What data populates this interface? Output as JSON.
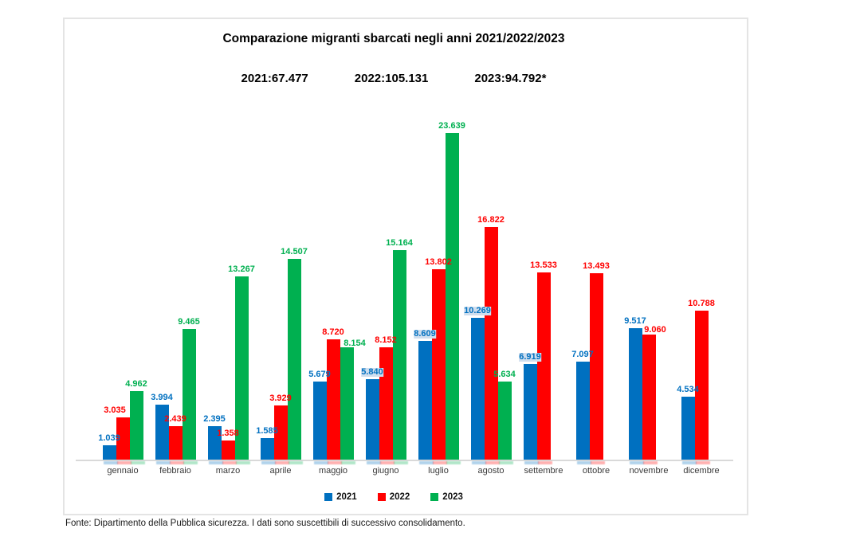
{
  "chart_data": {
    "type": "bar",
    "title": "Comparazione migranti sbarcati negli anni 2021/2022/2023",
    "subtitle_totals": [
      "2021:67.477",
      "2022:105.131",
      "2023:94.792*"
    ],
    "categories": [
      "gennaio",
      "febbraio",
      "marzo",
      "aprile",
      "maggio",
      "giugno",
      "luglio",
      "agosto",
      "settembre",
      "ottobre",
      "novembre",
      "dicembre"
    ],
    "ylim": [
      0,
      24000
    ],
    "grid": false,
    "legend_position": "bottom",
    "highlight_color": "#cfdeee",
    "series": [
      {
        "name": "2021",
        "color": "#0070C0",
        "values": [
          1039,
          3994,
          2395,
          1585,
          5679,
          5840,
          8609,
          10269,
          6919,
          7097,
          9517,
          4534
        ],
        "labels": [
          "1.039",
          "3.994",
          "2.395",
          "1.585",
          "5.679",
          "5.840",
          "8.609",
          "10.269",
          "6.919",
          "7.097",
          "9.517",
          "4.534"
        ],
        "highlighted_labels": [
          "5.840",
          "8.609",
          "10.269",
          "6.919"
        ]
      },
      {
        "name": "2022",
        "color": "#FF0000",
        "values": [
          3035,
          2439,
          1358,
          3929,
          8720,
          8152,
          13802,
          16822,
          13533,
          13493,
          9060,
          10788
        ],
        "labels": [
          "3.035",
          "2.439",
          "1.358",
          "3.929",
          "8.720",
          "8.152",
          "13.802",
          "16.822",
          "13.533",
          "13.493",
          "9.060",
          "10.788"
        ],
        "highlighted_labels": []
      },
      {
        "name": "2023",
        "color": "#00B050",
        "values": [
          4962,
          9465,
          13267,
          14507,
          8154,
          15164,
          23639,
          5634,
          null,
          null,
          null,
          null
        ],
        "labels": [
          "4.962",
          "9.465",
          "13.267",
          "14.507",
          "8.154",
          "15.164",
          "23.639",
          "5.634",
          null,
          null,
          null,
          null
        ],
        "highlighted_labels": []
      }
    ],
    "label_offsets": {
      "2022": {
        "0": [
          -10,
          0
        ],
        "10": [
          8,
          3
        ]
      },
      "2023": {
        "4": [
          10,
          4
        ]
      }
    },
    "footer": "Fonte: Dipartimento della Pubblica sicurezza. I dati sono suscettibili di successivo consolidamento."
  }
}
